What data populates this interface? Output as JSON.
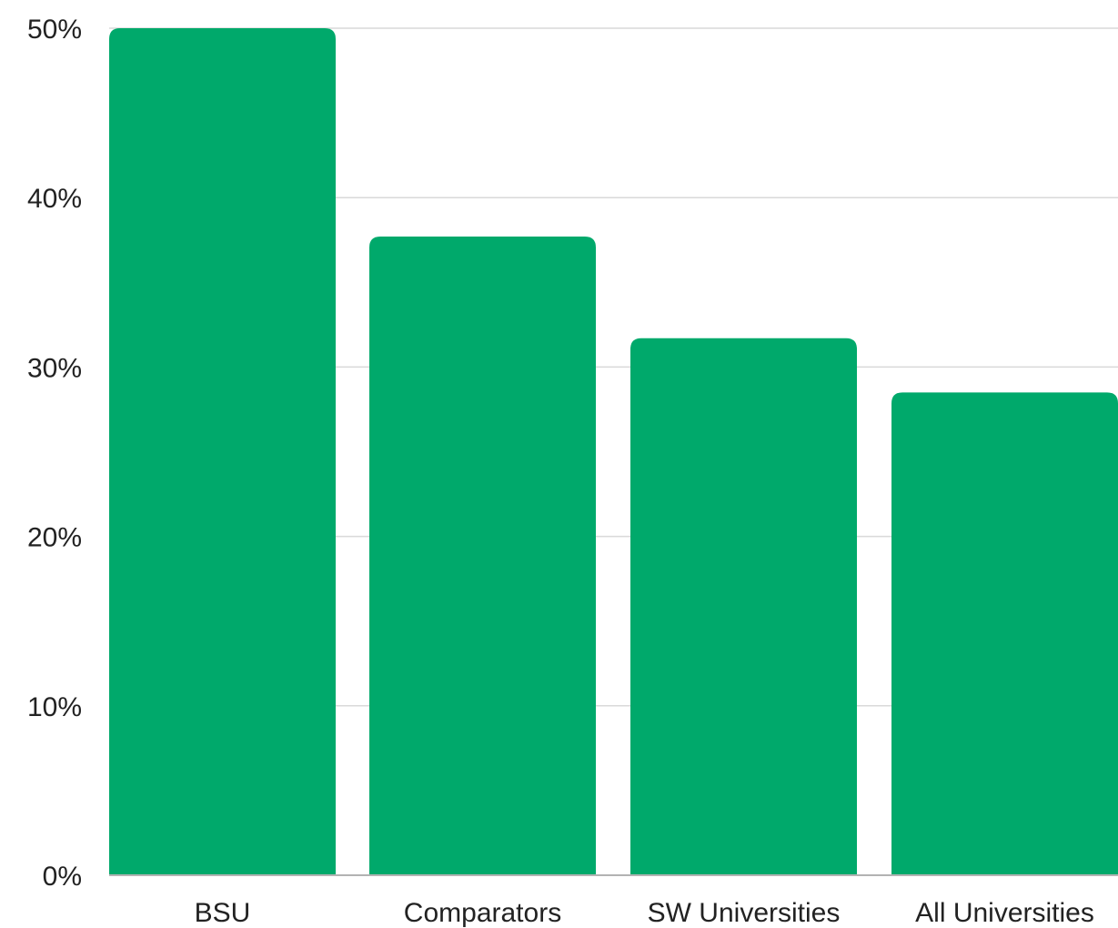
{
  "chart_data": {
    "type": "bar",
    "title": "",
    "xlabel": "",
    "ylabel": "",
    "categories": [
      "BSU",
      "Comparators",
      "SW Universities",
      "All Universities"
    ],
    "values": [
      50,
      37.7,
      31.7,
      28.5
    ],
    "ylim": [
      0,
      50
    ],
    "yticks": [
      0,
      10,
      20,
      30,
      40,
      50
    ],
    "ytick_labels": [
      "0%",
      "10%",
      "20%",
      "30%",
      "40%",
      "50%"
    ],
    "grid": true,
    "legend": "none",
    "colors": {
      "bar": "#00a96b",
      "grid": "#d9d9d9",
      "axis": "#b3b3b3",
      "text": "#222222"
    }
  }
}
